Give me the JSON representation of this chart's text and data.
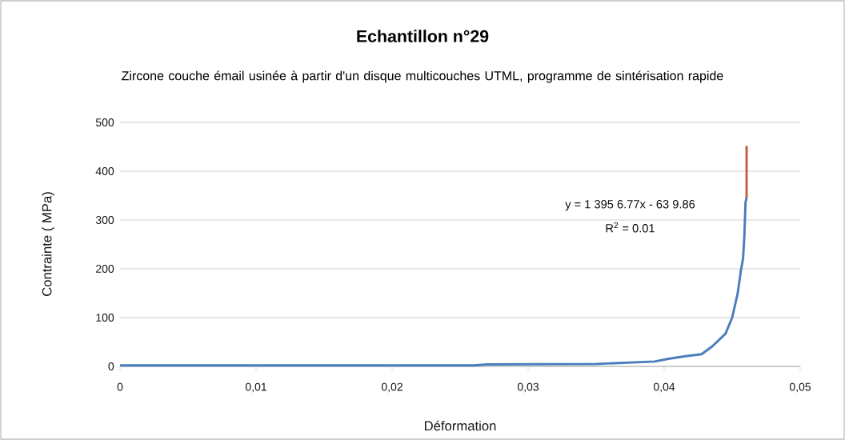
{
  "chart_data": {
    "type": "line",
    "title": "Echantillon n°29",
    "subtitle": "Zircone couche émail usinée à partir d'un disque multicouches UTML, programme de sintérisation rapide",
    "xlabel": "Déformation",
    "ylabel": "Contrainte ( MPa)",
    "series": [
      {
        "color": "#4a7ebb",
        "x": [
          0,
          0.01,
          0.02,
          0.026,
          0.027,
          0.035,
          0.0393,
          0.0404,
          0.04157,
          0.04275,
          0.04353,
          0.04451,
          0.045,
          0.0454,
          0.04565,
          0.0458,
          0.0459,
          0.04598,
          0.04606
        ],
        "values": [
          2,
          2,
          2,
          2,
          4,
          5,
          10,
          16,
          21,
          25,
          41,
          67,
          100,
          149,
          198,
          221,
          270,
          336,
          346
        ]
      },
      {
        "color": "#c0603f",
        "x": [
          0.04606,
          0.04606
        ],
        "values": [
          346,
          452
        ]
      }
    ],
    "xlim": [
      0,
      0.05
    ],
    "xticks": [
      0,
      {
        "value": 0.01,
        "label": "0,01"
      },
      {
        "value": 0.02,
        "label": "0,02"
      },
      {
        "value": 0.03,
        "label": "0,03"
      },
      {
        "value": 0.04,
        "label": "0,04"
      },
      {
        "value": 0.05,
        "label": "0,05"
      }
    ],
    "ylim": [
      0,
      500
    ],
    "yticks": [
      0,
      100,
      200,
      300,
      400,
      500
    ],
    "grid": "y",
    "marker": "none",
    "line_style": "solid",
    "annotations": [
      "y = 1 395 6.77x - 63 9.86",
      "R$^{2}$ = 0.01"
    ]
  }
}
